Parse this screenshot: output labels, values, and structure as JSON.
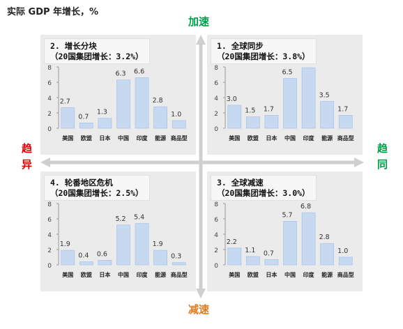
{
  "header": {
    "title": "实际 GDP 年增长，%"
  },
  "axis_labels": {
    "top": "加速",
    "bottom": "减速",
    "left": "趋异",
    "right": "趋同"
  },
  "colors": {
    "bar": "#c6d9f1",
    "bar_edge": "#9fc0e6",
    "top_label": "#00a04a",
    "bottom_label": "#e07b1a",
    "left_label": "#e00000",
    "right_label": "#00a04a",
    "panel_bg": "#ebebeb"
  },
  "chart_data": [
    {
      "type": "bar",
      "title_line1": "2. 增长分块",
      "title_line2": "（20国集团增长：3.2%）",
      "categories": [
        "美国",
        "欧盟",
        "日本",
        "中国",
        "印度",
        "能源",
        "商品型"
      ],
      "values": [
        2.7,
        0.7,
        1.3,
        6.3,
        6.6,
        2.8,
        1.0
      ],
      "value_labels": [
        "2.7",
        "0.7",
        "1.3",
        "6.3",
        "6.6",
        "2.8",
        "1.0"
      ],
      "yticks": [
        "0",
        "2",
        "4",
        "6",
        "8"
      ],
      "ylim": [
        0,
        8
      ]
    },
    {
      "type": "bar",
      "title_line1": "1. 全球同步",
      "title_line2": "（20国集团增长：3.8%）",
      "categories": [
        "美国",
        "欧盟",
        "日本",
        "中国",
        "印度",
        "能源",
        "商品型"
      ],
      "values": [
        3.0,
        1.5,
        1.7,
        6.5,
        7.9,
        3.5,
        1.7
      ],
      "value_labels": [
        "3.0",
        "1.5",
        "1.7",
        "6.5",
        "7.9",
        "3.5",
        "1.7"
      ],
      "yticks": [
        "0",
        "2",
        "4",
        "6",
        "8"
      ],
      "ylim": [
        0,
        8
      ]
    },
    {
      "type": "bar",
      "title_line1": "4. 轮番地区危机",
      "title_line2": "（20国集团增长：2.5%）",
      "categories": [
        "美国",
        "欧盟",
        "日本",
        "中国",
        "印度",
        "能源",
        "商品型"
      ],
      "values": [
        1.9,
        0.4,
        0.6,
        5.2,
        5.4,
        1.9,
        0.3
      ],
      "value_labels": [
        "1.9",
        "0.4",
        "0.6",
        "5.2",
        "5.4",
        "1.9",
        "0.3"
      ],
      "yticks": [
        "0",
        "2",
        "4",
        "6",
        "8"
      ],
      "ylim": [
        0,
        8
      ]
    },
    {
      "type": "bar",
      "title_line1": "3. 全球减速",
      "title_line2": "（20国集团增长：3.0%）",
      "categories": [
        "美国",
        "欧盟",
        "日本",
        "中国",
        "印度",
        "能源",
        "商品型"
      ],
      "values": [
        2.2,
        1.1,
        0.7,
        5.7,
        6.8,
        2.8,
        1.0
      ],
      "value_labels": [
        "2.2",
        "1.1",
        "0.7",
        "5.7",
        "6.8",
        "2.8",
        "1.0"
      ],
      "yticks": [
        "0",
        "2",
        "4",
        "6",
        "8"
      ],
      "ylim": [
        0,
        8
      ]
    }
  ]
}
